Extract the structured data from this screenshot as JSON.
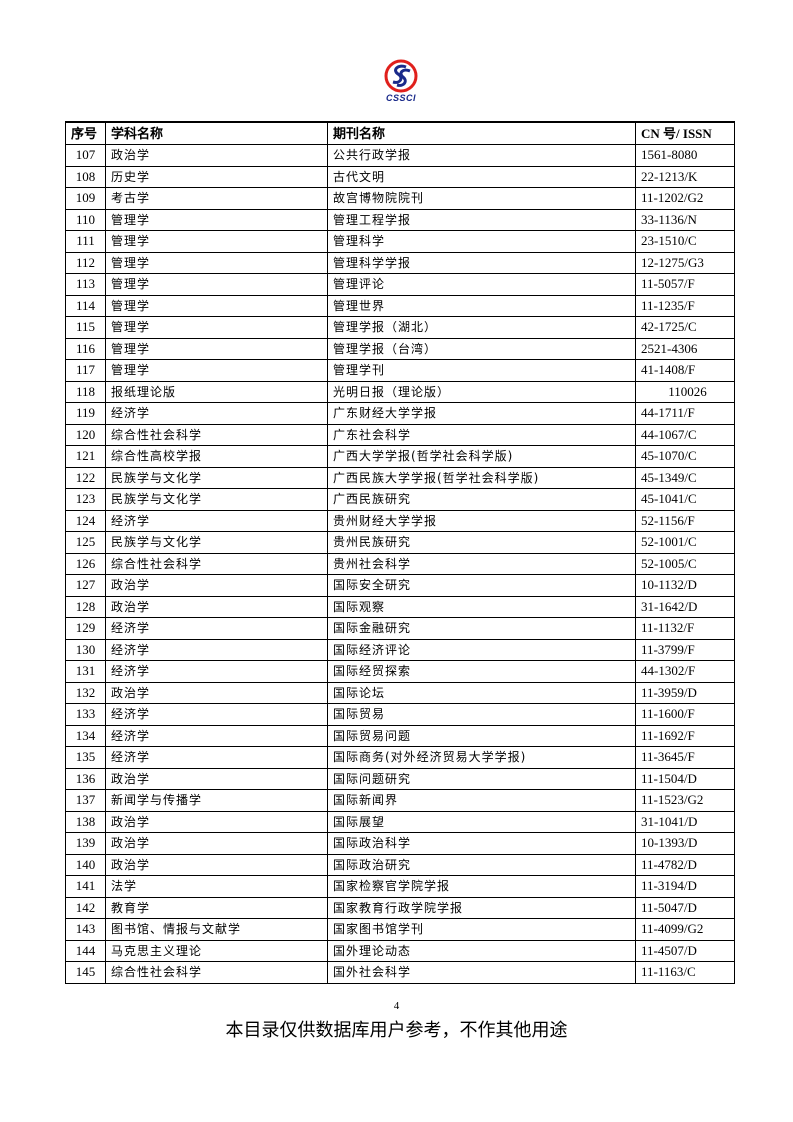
{
  "logo": {
    "text": "CSSCI",
    "colors": {
      "ring": "#e0201c",
      "s": "#1a2a8a"
    }
  },
  "table": {
    "headers": [
      "序号",
      "学科名称",
      "期刊名称",
      "CN 号/ ISSN"
    ],
    "rows": [
      [
        "107",
        "政治学",
        "公共行政学报",
        "1561-8080"
      ],
      [
        "108",
        "历史学",
        "古代文明",
        "22-1213/K"
      ],
      [
        "109",
        "考古学",
        "故宫博物院院刊",
        "11-1202/G2"
      ],
      [
        "110",
        "管理学",
        "管理工程学报",
        "33-1136/N"
      ],
      [
        "111",
        "管理学",
        "管理科学",
        "23-1510/C"
      ],
      [
        "112",
        "管理学",
        "管理科学学报",
        "12-1275/G3"
      ],
      [
        "113",
        "管理学",
        "管理评论",
        "11-5057/F"
      ],
      [
        "114",
        "管理学",
        "管理世界",
        "11-1235/F"
      ],
      [
        "115",
        "管理学",
        "管理学报（湖北）",
        "42-1725/C"
      ],
      [
        "116",
        "管理学",
        "管理学报（台湾）",
        "2521-4306"
      ],
      [
        "117",
        "管理学",
        "管理学刊",
        "41-1408/F"
      ],
      [
        "118",
        "报纸理论版",
        "光明日报（理论版）",
        "110026"
      ],
      [
        "119",
        "经济学",
        "广东财经大学学报",
        "44-1711/F"
      ],
      [
        "120",
        "综合性社会科学",
        "广东社会科学",
        "44-1067/C"
      ],
      [
        "121",
        "综合性高校学报",
        "广西大学学报(哲学社会科学版)",
        "45-1070/C"
      ],
      [
        "122",
        "民族学与文化学",
        "广西民族大学学报(哲学社会科学版)",
        "45-1349/C"
      ],
      [
        "123",
        "民族学与文化学",
        "广西民族研究",
        "45-1041/C"
      ],
      [
        "124",
        "经济学",
        "贵州财经大学学报",
        "52-1156/F"
      ],
      [
        "125",
        "民族学与文化学",
        "贵州民族研究",
        "52-1001/C"
      ],
      [
        "126",
        "综合性社会科学",
        "贵州社会科学",
        "52-1005/C"
      ],
      [
        "127",
        "政治学",
        "国际安全研究",
        "10-1132/D"
      ],
      [
        "128",
        "政治学",
        "国际观察",
        "31-1642/D"
      ],
      [
        "129",
        "经济学",
        "国际金融研究",
        "11-1132/F"
      ],
      [
        "130",
        "经济学",
        "国际经济评论",
        "11-3799/F"
      ],
      [
        "131",
        "经济学",
        "国际经贸探索",
        "44-1302/F"
      ],
      [
        "132",
        "政治学",
        "国际论坛",
        "11-3959/D"
      ],
      [
        "133",
        "经济学",
        "国际贸易",
        "11-1600/F"
      ],
      [
        "134",
        "经济学",
        "国际贸易问题",
        "11-1692/F"
      ],
      [
        "135",
        "经济学",
        "国际商务(对外经济贸易大学学报)",
        "11-3645/F"
      ],
      [
        "136",
        "政治学",
        "国际问题研究",
        "11-1504/D"
      ],
      [
        "137",
        "新闻学与传播学",
        "国际新闻界",
        "11-1523/G2"
      ],
      [
        "138",
        "政治学",
        "国际展望",
        "31-1041/D"
      ],
      [
        "139",
        "政治学",
        "国际政治科学",
        "10-1393/D"
      ],
      [
        "140",
        "政治学",
        "国际政治研究",
        "11-4782/D"
      ],
      [
        "141",
        "法学",
        "国家检察官学院学报",
        "11-3194/D"
      ],
      [
        "142",
        "教育学",
        "国家教育行政学院学报",
        "11-5047/D"
      ],
      [
        "143",
        "图书馆、情报与文献学",
        "国家图书馆学刊",
        "11-4099/G2"
      ],
      [
        "144",
        "马克思主义理论",
        "国外理论动态",
        "11-4507/D"
      ],
      [
        "145",
        "综合性社会科学",
        "国外社会科学",
        "11-1163/C"
      ]
    ]
  },
  "page_number": "4",
  "footer": "本目录仅供数据库用户参考，不作其他用途"
}
